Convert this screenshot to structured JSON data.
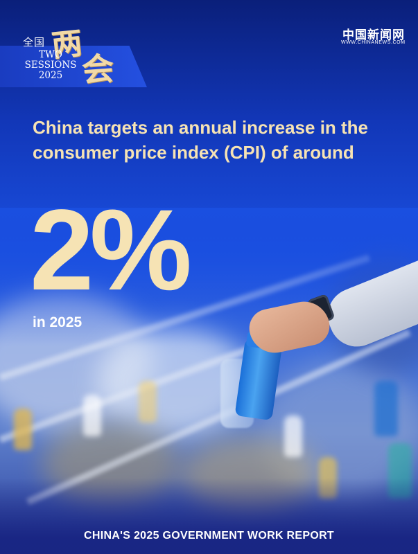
{
  "badge": {
    "quanguo": "全国",
    "liang": "两",
    "hui": "会",
    "line1": "TWO",
    "line2": "SESSIONS",
    "line3": "2025"
  },
  "logo": {
    "name_cn": "中国新闻网",
    "url": "WWW.CHINANEWS.COM"
  },
  "headline": "China targets an annual increase in the consumer price index (CPI) of around",
  "value": "2%",
  "year_line": "in 2025",
  "footer": "CHINA'S 2025 GOVERNMENT WORK REPORT",
  "colors": {
    "headline": "#f6e3b4",
    "background": "#1a4fe0"
  }
}
